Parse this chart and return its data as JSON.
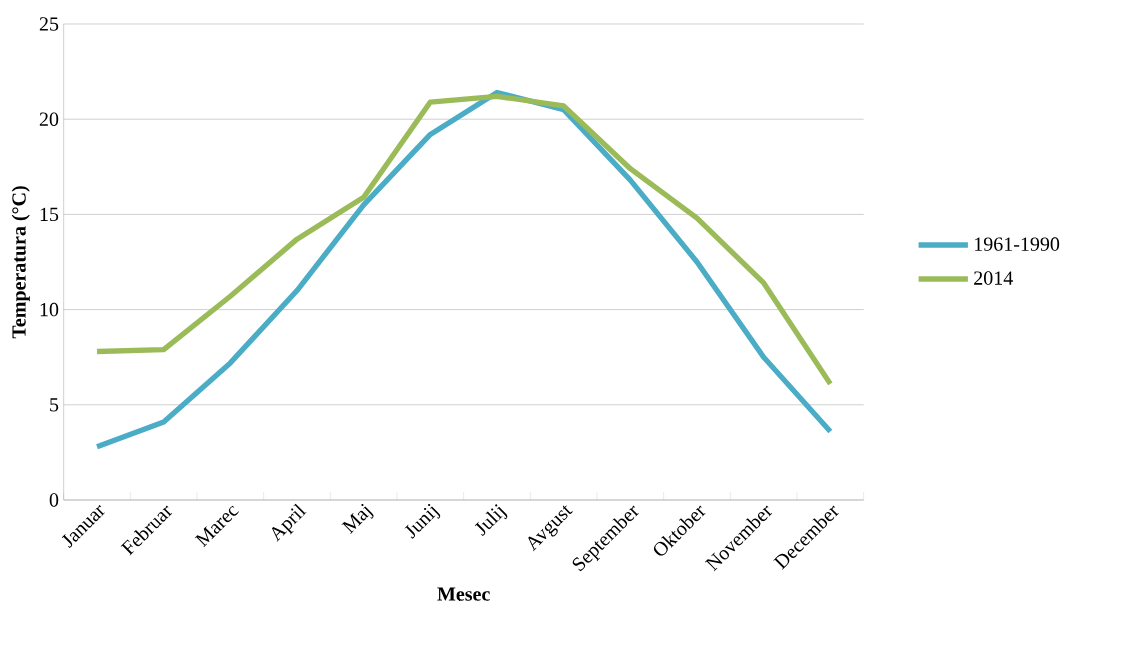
{
  "chart_data": {
    "type": "line",
    "xlabel": "Mesec",
    "ylabel": "Temperatura  (°C)",
    "categories": [
      "Januar",
      "Februar",
      "Marec",
      "April",
      "Maj",
      "Junij",
      "Julij",
      "Avgust",
      "September",
      "Oktober",
      "November",
      "December"
    ],
    "series": [
      {
        "name": "1961-1990",
        "color": "#4bacc6",
        "values": [
          2.8,
          4.1,
          7.2,
          11.0,
          15.5,
          19.2,
          21.4,
          20.5,
          16.8,
          12.5,
          7.5,
          3.6
        ]
      },
      {
        "name": "2014",
        "color": "#9bbb59",
        "values": [
          7.8,
          7.9,
          10.7,
          13.7,
          15.9,
          20.9,
          21.2,
          20.7,
          17.4,
          14.8,
          11.4,
          6.1
        ]
      }
    ],
    "ylim": [
      0,
      25
    ],
    "yticks": [
      0,
      5,
      10,
      15,
      20,
      25
    ],
    "grid": "y",
    "legend": "right",
    "marker": "none",
    "line_style": "solid"
  }
}
